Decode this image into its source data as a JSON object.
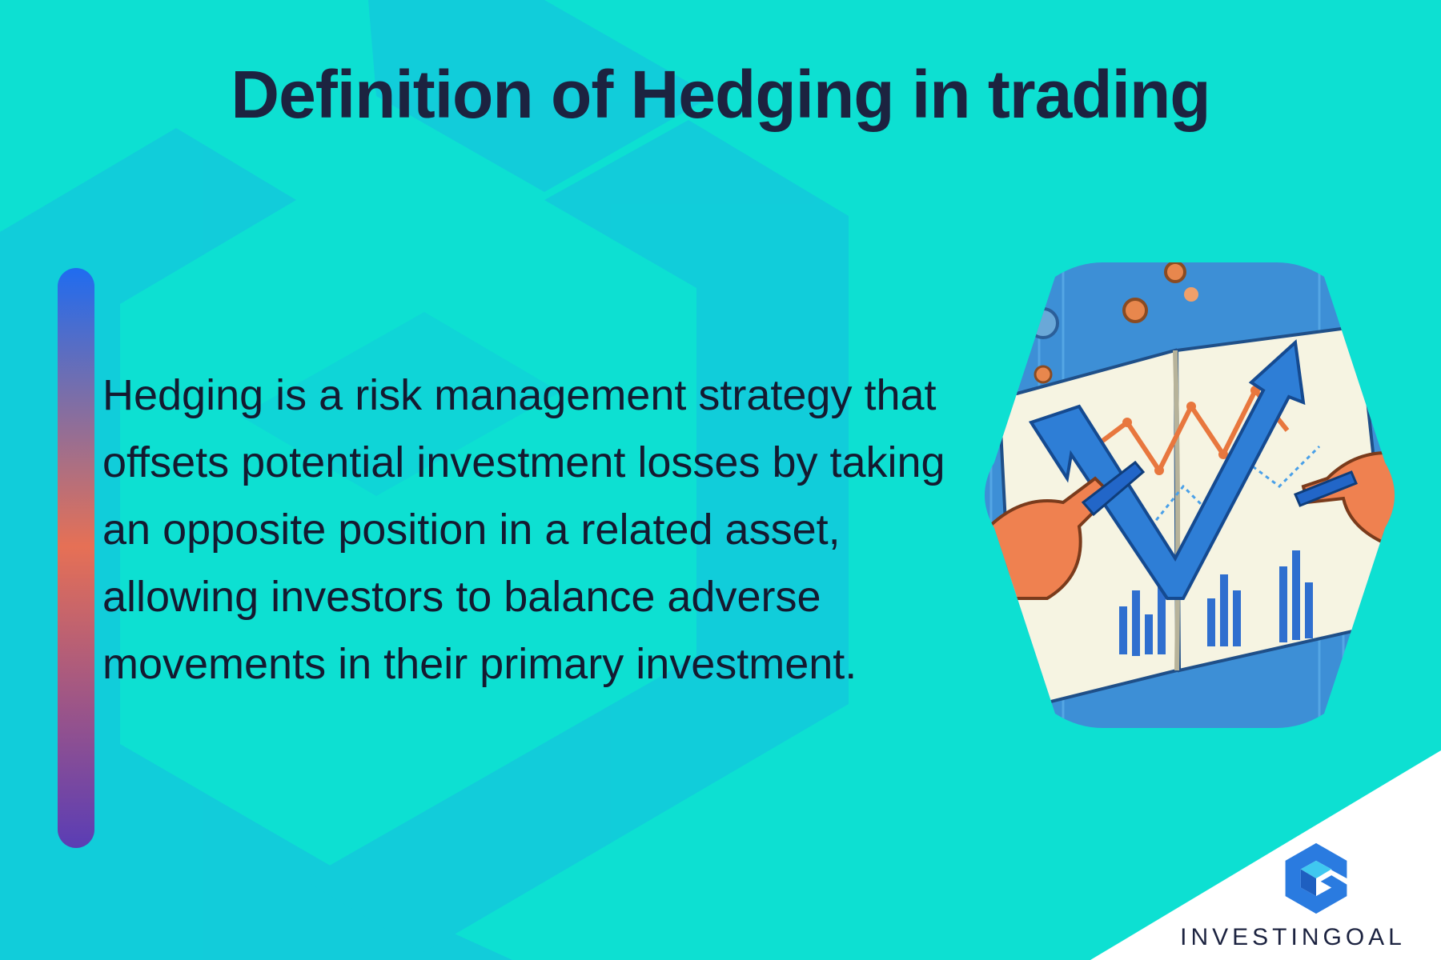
{
  "slide": {
    "title": "Definition of Hedging in trading",
    "definition": "Hedging is a risk management strategy that offsets potential investment losses by taking an opposite position in a related asset, allowing investors to balance adverse movements in their primary investment.",
    "brand_name": "INVESTINGOAL"
  },
  "colors": {
    "background": "#0de0d2",
    "pattern": "#13c9dc",
    "title_text": "#1c2340",
    "body_text": "#141a30",
    "bar_top": "#1f6cf0",
    "bar_middle": "#e67055",
    "bar_bottom": "#5a3db5",
    "logo_blue": "#2a7be0",
    "logo_cyan": "#3fc8f0"
  },
  "icons": {
    "illustration": "hand-drawing-chart-notebook",
    "logo": "investingoal-logo-icon"
  }
}
